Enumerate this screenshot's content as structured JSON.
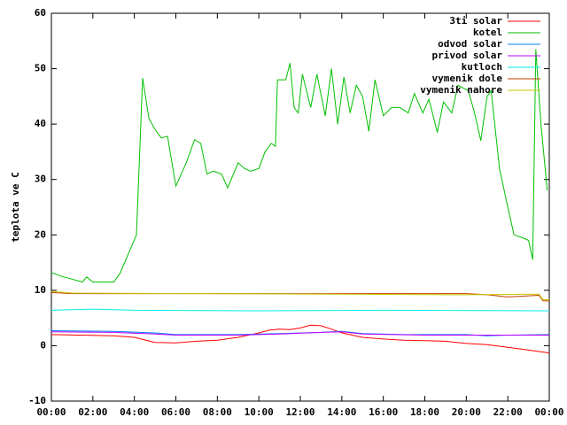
{
  "chart_data": {
    "type": "line",
    "ylabel": "teplota ve C",
    "xlim": [
      0,
      24
    ],
    "xticks": [
      {
        "value": 0,
        "label": "00:00"
      },
      {
        "value": 2,
        "label": "02:00"
      },
      {
        "value": 4,
        "label": "04:00"
      },
      {
        "value": 6,
        "label": "06:00"
      },
      {
        "value": 8,
        "label": "08:00"
      },
      {
        "value": 10,
        "label": "10:00"
      },
      {
        "value": 12,
        "label": "12:00"
      },
      {
        "value": 14,
        "label": "14:00"
      },
      {
        "value": 16,
        "label": "16:00"
      },
      {
        "value": 18,
        "label": "18:00"
      },
      {
        "value": 20,
        "label": "20:00"
      },
      {
        "value": 22,
        "label": "22:00"
      },
      {
        "value": 24,
        "label": "00:00"
      }
    ],
    "ylim": [
      -10,
      60
    ],
    "yticks": [
      -10,
      0,
      10,
      20,
      30,
      40,
      50,
      60
    ],
    "legend": "top-right",
    "series": [
      {
        "name": "3ti solar",
        "color": "#ff0000",
        "x": [
          0,
          3,
          4,
          5,
          6,
          7,
          8,
          9,
          10,
          10.5,
          11,
          11.5,
          12,
          12.5,
          13,
          13.5,
          14,
          15,
          16,
          17,
          18,
          19,
          20,
          21,
          22,
          23,
          24
        ],
        "values": [
          2.0,
          1.8,
          1.5,
          0.6,
          0.5,
          0.8,
          1.0,
          1.5,
          2.3,
          2.8,
          3.0,
          2.9,
          3.2,
          3.7,
          3.6,
          3.0,
          2.3,
          1.5,
          1.2,
          1.0,
          0.9,
          0.8,
          0.4,
          0.2,
          -0.3,
          -0.8,
          -1.3
        ]
      },
      {
        "name": "kotel",
        "color": "#00c000",
        "x": [
          0,
          0.5,
          1,
          1.5,
          1.7,
          2,
          2.5,
          3,
          3.3,
          4.1,
          4.4,
          4.7,
          5,
          5.3,
          5.6,
          6,
          6.5,
          6.9,
          7.2,
          7.5,
          7.8,
          8.2,
          8.5,
          9,
          9.3,
          9.6,
          10,
          10.3,
          10.6,
          10.8,
          10.9,
          11.3,
          11.5,
          11.7,
          11.9,
          12.1,
          12.5,
          12.8,
          13.2,
          13.5,
          13.8,
          14.1,
          14.4,
          14.7,
          15,
          15.3,
          15.6,
          16,
          16.4,
          16.8,
          17.2,
          17.5,
          17.9,
          18.2,
          18.6,
          18.9,
          19.3,
          19.6,
          20.1,
          20.4,
          20.7,
          21,
          21.2,
          21.6,
          22,
          22.3,
          22.7,
          23,
          23.2,
          23.35,
          23.6,
          23.9
        ],
        "values": [
          13.2,
          12.5,
          12.0,
          11.5,
          12.4,
          11.5,
          11.5,
          11.5,
          13.0,
          20.0,
          48.3,
          41.0,
          39.0,
          37.5,
          37.8,
          28.8,
          33.0,
          37.2,
          36.5,
          31.0,
          31.5,
          31.0,
          28.5,
          33.0,
          32.0,
          31.5,
          32.0,
          35.0,
          36.5,
          36.0,
          48.0,
          48.0,
          51.0,
          43.0,
          42.0,
          49.0,
          43.0,
          49.0,
          41.5,
          50.0,
          40.0,
          48.5,
          42.0,
          47.0,
          45.0,
          38.7,
          48.0,
          41.5,
          43.0,
          43.0,
          42.0,
          45.5,
          42.0,
          44.5,
          38.5,
          44.0,
          42.0,
          47.0,
          46.0,
          42.0,
          37.0,
          45.0,
          46.0,
          32.0,
          25.0,
          20.0,
          19.5,
          19.0,
          15.5,
          53.5,
          40.0,
          28.0
        ]
      },
      {
        "name": "odvod solar",
        "color": "#0080ff",
        "x": [
          0,
          3,
          5,
          6,
          9,
          11,
          13,
          14,
          15,
          17,
          20,
          21,
          22,
          24
        ],
        "values": [
          2.7,
          2.6,
          2.3,
          2.0,
          2.0,
          2.2,
          2.4,
          2.6,
          2.2,
          2.0,
          2.0,
          1.8,
          1.9,
          2.0
        ]
      },
      {
        "name": "privod solar",
        "color": "#c000ff",
        "x": [
          0,
          3,
          5,
          6,
          9,
          11,
          13,
          14,
          15,
          18,
          24
        ],
        "values": [
          2.5,
          2.4,
          2.1,
          1.9,
          1.9,
          2.1,
          2.4,
          2.5,
          2.1,
          1.9,
          1.9
        ]
      },
      {
        "name": "kutloch",
        "color": "#00eeee",
        "x": [
          0,
          2,
          4,
          10,
          16,
          24
        ],
        "values": [
          6.4,
          6.6,
          6.4,
          6.3,
          6.4,
          6.3
        ]
      },
      {
        "name": "vymenik dole",
        "color": "#c04000",
        "x": [
          0,
          1,
          20,
          21,
          22,
          23,
          23.5,
          23.7,
          24
        ],
        "values": [
          9.6,
          9.4,
          9.4,
          9.2,
          8.8,
          9.0,
          9.1,
          8.1,
          8.1
        ]
      },
      {
        "name": "vymenik nahore",
        "color": "#c8c800",
        "x": [
          0,
          1,
          20,
          23.5,
          23.7,
          24
        ],
        "values": [
          9.8,
          9.5,
          9.2,
          9.3,
          8.3,
          8.3
        ]
      }
    ]
  }
}
